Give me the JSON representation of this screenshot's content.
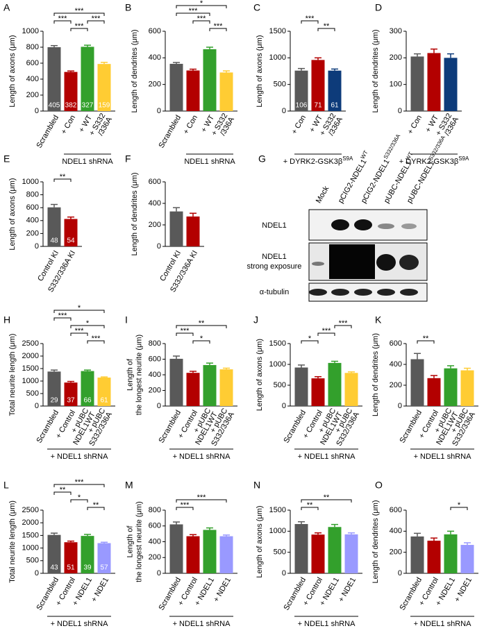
{
  "chart_data": [
    {
      "type": "bar",
      "label": "A",
      "ylabel": [
        "Length of axons (μm)"
      ],
      "categories": [
        [
          "Scrambled"
        ],
        [
          "+ Con"
        ],
        [
          "+ WT"
        ],
        [
          "+ S332",
          "/336A"
        ]
      ],
      "values": [
        800,
        490,
        805,
        590
      ],
      "errors": [
        20,
        12,
        20,
        20
      ],
      "n": [
        405,
        382,
        327,
        159
      ],
      "colors": [
        "#595959",
        "#b30000",
        "#33a02c",
        "#ffcc33"
      ],
      "ylim": [
        0,
        1000
      ],
      "yticks": [
        0,
        200,
        400,
        600,
        800,
        1000
      ],
      "group": {
        "text": "NDEL1 shRNA",
        "from": 1,
        "to": 3
      },
      "significance": [
        {
          "from": 1,
          "to": 2,
          "label": "***"
        },
        {
          "from": 2,
          "to": 3,
          "label": "***"
        },
        {
          "from": 0,
          "to": 1,
          "label": "***"
        },
        {
          "from": 0,
          "to": 3,
          "label": "***"
        }
      ]
    },
    {
      "type": "bar",
      "label": "B",
      "ylabel": [
        "Length of dendrites (μm)"
      ],
      "categories": [
        [
          "Scrambled"
        ],
        [
          "+ Con"
        ],
        [
          "+ WT"
        ],
        [
          "+ S332",
          "/336A"
        ]
      ],
      "values": [
        355,
        305,
        465,
        290
      ],
      "errors": [
        10,
        10,
        15,
        12
      ],
      "colors": [
        "#595959",
        "#b30000",
        "#33a02c",
        "#ffcc33"
      ],
      "ylim": [
        0,
        600
      ],
      "yticks": [
        0,
        200,
        400,
        600
      ],
      "group": {
        "text": "NDEL1 shRNA",
        "from": 1,
        "to": 3
      },
      "significance": [
        {
          "from": 2,
          "to": 3,
          "label": "***"
        },
        {
          "from": 1,
          "to": 2,
          "label": "***"
        },
        {
          "from": 0,
          "to": 2,
          "label": "***"
        },
        {
          "from": 0,
          "to": 3,
          "label": "*"
        }
      ]
    },
    {
      "type": "bar",
      "label": "C",
      "ylabel": [
        "Length of axons (μm)"
      ],
      "categories": [
        [
          "+ Con"
        ],
        [
          "+ WT"
        ],
        [
          "+ S332",
          "/336A"
        ]
      ],
      "values": [
        760,
        960,
        760
      ],
      "errors": [
        40,
        40,
        30
      ],
      "n": [
        106,
        71,
        61
      ],
      "colors": [
        "#595959",
        "#b30000",
        "#0d3b7a"
      ],
      "ylim": [
        0,
        1500
      ],
      "yticks": [
        0,
        500,
        1000,
        1500
      ],
      "group": {
        "text": "+ DYRK2-GSK3β",
        "sup": "S9A",
        "from": 0,
        "to": 2
      },
      "significance": [
        {
          "from": 1,
          "to": 2,
          "label": "**"
        },
        {
          "from": 0,
          "to": 1,
          "label": "***"
        }
      ]
    },
    {
      "type": "bar",
      "label": "D",
      "ylabel": [
        "Length of dendrites (μm)"
      ],
      "categories": [
        [
          "+ Con"
        ],
        [
          "+ WT"
        ],
        [
          "+ S332",
          "/336A"
        ]
      ],
      "values": [
        205,
        218,
        200
      ],
      "errors": [
        10,
        15,
        15
      ],
      "colors": [
        "#595959",
        "#b30000",
        "#0d3b7a"
      ],
      "ylim": [
        0,
        300
      ],
      "yticks": [
        0,
        100,
        200,
        300
      ],
      "group": {
        "text": "+ DYRK2-GSK3β",
        "sup": "S9A",
        "from": 0,
        "to": 2
      },
      "significance": []
    },
    {
      "type": "bar",
      "label": "E",
      "ylabel": [
        "Length of axons (μm)"
      ],
      "categories": [
        [
          "Control KI"
        ],
        [
          "S332/336A KI"
        ]
      ],
      "values": [
        605,
        425
      ],
      "errors": [
        45,
        30
      ],
      "n": [
        48,
        54
      ],
      "colors": [
        "#595959",
        "#b30000"
      ],
      "ylim": [
        0,
        1000
      ],
      "yticks": [
        0,
        200,
        400,
        600,
        800,
        1000
      ],
      "significance": [
        {
          "from": 0,
          "to": 1,
          "label": "**"
        }
      ]
    },
    {
      "type": "bar",
      "label": "F",
      "ylabel": [
        "Length of dendrites (μm)"
      ],
      "categories": [
        [
          "Control KI"
        ],
        [
          "S332/336A KI"
        ]
      ],
      "values": [
        325,
        278
      ],
      "errors": [
        35,
        30
      ],
      "colors": [
        "#595959",
        "#b30000"
      ],
      "ylim": [
        0,
        600
      ],
      "yticks": [
        0,
        200,
        400,
        600
      ],
      "significance": []
    },
    {
      "type": "bar",
      "label": "H",
      "ylabel": [
        "Total neurite length (μm)"
      ],
      "categories": [
        [
          "Scrambled"
        ],
        [
          "+ Control"
        ],
        [
          "+ pUBC",
          "NDEL1WT"
        ],
        [
          "+ pUBC",
          "S332/336A"
        ]
      ],
      "values": [
        1380,
        940,
        1400,
        1140
      ],
      "errors": [
        60,
        45,
        40,
        25
      ],
      "n": [
        29,
        37,
        66,
        61
      ],
      "colors": [
        "#595959",
        "#b30000",
        "#33a02c",
        "#ffcc33"
      ],
      "ylim": [
        0,
        2500
      ],
      "yticks": [
        0,
        500,
        1000,
        1500,
        2000,
        2500
      ],
      "group": {
        "text": "+ NDEL1 shRNA",
        "from": 0,
        "to": 3
      },
      "significance": [
        {
          "from": 2,
          "to": 3,
          "label": "***"
        },
        {
          "from": 1,
          "to": 2,
          "label": "***"
        },
        {
          "from": 1,
          "to": 3,
          "label": "*"
        },
        {
          "from": 0,
          "to": 1,
          "label": "***"
        },
        {
          "from": 0,
          "to": 3,
          "label": "*"
        }
      ]
    },
    {
      "type": "bar",
      "label": "I",
      "ylabel": [
        "Length of",
        "the longest neurite (μm)"
      ],
      "categories": [
        [
          "Scrambled"
        ],
        [
          "+ Control"
        ],
        [
          "+ pUBC",
          "NDEL1WT"
        ],
        [
          "+ pUBC",
          "S332/336A"
        ]
      ],
      "values": [
        605,
        425,
        525,
        470
      ],
      "errors": [
        35,
        20,
        25,
        15
      ],
      "colors": [
        "#595959",
        "#b30000",
        "#33a02c",
        "#ffcc33"
      ],
      "ylim": [
        0,
        800
      ],
      "yticks": [
        0,
        200,
        400,
        600,
        800
      ],
      "group": {
        "text": "+ NDEL1 shRNA",
        "from": 0,
        "to": 3
      },
      "significance": [
        {
          "from": 1,
          "to": 2,
          "label": "*"
        },
        {
          "from": 0,
          "to": 1,
          "label": "***"
        },
        {
          "from": 0,
          "to": 3,
          "label": "**"
        }
      ]
    },
    {
      "type": "bar",
      "label": "J",
      "ylabel": [
        "Length of axons (μm)"
      ],
      "categories": [
        [
          "Scrambled"
        ],
        [
          "+ Control"
        ],
        [
          "+ pUBC",
          "NDEL1WT"
        ],
        [
          "+ pUBC",
          "S332/336A"
        ]
      ],
      "values": [
        925,
        665,
        1035,
        795
      ],
      "errors": [
        60,
        40,
        40,
        25
      ],
      "colors": [
        "#595959",
        "#b30000",
        "#33a02c",
        "#ffcc33"
      ],
      "ylim": [
        0,
        1500
      ],
      "yticks": [
        0,
        500,
        1000,
        1500
      ],
      "group": {
        "text": "+ NDEL1 shRNA",
        "from": 0,
        "to": 3
      },
      "significance": [
        {
          "from": 0,
          "to": 1,
          "label": "*"
        },
        {
          "from": 1,
          "to": 2,
          "label": "***"
        },
        {
          "from": 2,
          "to": 3,
          "label": "***"
        }
      ]
    },
    {
      "type": "bar",
      "label": "K",
      "ylabel": [
        "Length of dendrites (μm)"
      ],
      "categories": [
        [
          "Scrambled"
        ],
        [
          "+ Control"
        ],
        [
          "+ pUBC",
          "NDEL1WT"
        ],
        [
          "+ pUBC",
          "S332/336A"
        ]
      ],
      "values": [
        450,
        268,
        362,
        343
      ],
      "errors": [
        55,
        25,
        25,
        20
      ],
      "colors": [
        "#595959",
        "#b30000",
        "#33a02c",
        "#ffcc33"
      ],
      "ylim": [
        0,
        600
      ],
      "yticks": [
        0,
        200,
        400,
        600
      ],
      "group": {
        "text": "+ NDEL1 shRNA",
        "from": 0,
        "to": 3
      },
      "significance": [
        {
          "from": 0,
          "to": 1,
          "label": "**"
        }
      ]
    },
    {
      "type": "bar",
      "label": "L",
      "ylabel": [
        "Total neurite length (μm)"
      ],
      "categories": [
        [
          "Scrambled"
        ],
        [
          "+ Control"
        ],
        [
          "+ NDEL1"
        ],
        [
          "+ NDE1"
        ]
      ],
      "values": [
        1520,
        1230,
        1480,
        1195
      ],
      "errors": [
        70,
        45,
        60,
        35
      ],
      "n": [
        43,
        51,
        39,
        57
      ],
      "colors": [
        "#595959",
        "#b30000",
        "#33a02c",
        "#9999ff"
      ],
      "ylim": [
        0,
        2500
      ],
      "yticks": [
        0,
        500,
        1000,
        1500,
        2000,
        2500
      ],
      "group": {
        "text": "+ NDEL1 shRNA",
        "from": 0,
        "to": 3
      },
      "significance": [
        {
          "from": 2,
          "to": 3,
          "label": "**"
        },
        {
          "from": 1,
          "to": 2,
          "label": "*"
        },
        {
          "from": 0,
          "to": 1,
          "label": "**"
        },
        {
          "from": 0,
          "to": 3,
          "label": "***"
        }
      ]
    },
    {
      "type": "bar",
      "label": "M",
      "ylabel": [
        "Length of",
        "the longest neurite (μm)"
      ],
      "categories": [
        [
          "Scrambled"
        ],
        [
          "+ Control"
        ],
        [
          "+ NDEL1"
        ],
        [
          "+ NDE1"
        ]
      ],
      "values": [
        620,
        470,
        550,
        470
      ],
      "errors": [
        30,
        20,
        25,
        15
      ],
      "colors": [
        "#595959",
        "#b30000",
        "#33a02c",
        "#9999ff"
      ],
      "ylim": [
        0,
        800
      ],
      "yticks": [
        0,
        200,
        400,
        600,
        800
      ],
      "group": {
        "text": "+ NDEL1 shRNA",
        "from": 0,
        "to": 3
      },
      "significance": [
        {
          "from": 0,
          "to": 1,
          "label": "***"
        },
        {
          "from": 0,
          "to": 3,
          "label": "***"
        }
      ]
    },
    {
      "type": "bar",
      "label": "N",
      "ylabel": [
        "Length of axons (μm)"
      ],
      "categories": [
        [
          "Scrambled"
        ],
        [
          "+ Control"
        ],
        [
          "+ NDEL1"
        ],
        [
          "+ NDE1"
        ]
      ],
      "values": [
        1170,
        920,
        1100,
        925
      ],
      "errors": [
        55,
        40,
        60,
        35
      ],
      "colors": [
        "#595959",
        "#b30000",
        "#33a02c",
        "#9999ff"
      ],
      "ylim": [
        0,
        1500
      ],
      "yticks": [
        0,
        500,
        1000,
        1500
      ],
      "group": {
        "text": "+ NDEL1 shRNA",
        "from": 0,
        "to": 3
      },
      "significance": [
        {
          "from": 0,
          "to": 1,
          "label": "**"
        },
        {
          "from": 0,
          "to": 3,
          "label": "**"
        }
      ]
    },
    {
      "type": "bar",
      "label": "O",
      "ylabel": [
        "Length of dendrites (μm)"
      ],
      "categories": [
        [
          "Scrambled"
        ],
        [
          "+ Control"
        ],
        [
          "+ NDEL1"
        ],
        [
          "+ NDE1"
        ]
      ],
      "values": [
        350,
        310,
        370,
        270
      ],
      "errors": [
        30,
        25,
        30,
        20
      ],
      "colors": [
        "#595959",
        "#b30000",
        "#33a02c",
        "#9999ff"
      ],
      "ylim": [
        0,
        600
      ],
      "yticks": [
        0,
        200,
        400,
        600
      ],
      "group": {
        "text": "+ NDEL1 shRNA",
        "from": 0,
        "to": 3
      },
      "significance": [
        {
          "from": 2,
          "to": 3,
          "label": "*"
        }
      ]
    }
  ],
  "blot": {
    "label": "G",
    "lanes": [
      {
        "text": "Mock"
      },
      {
        "text": "pCIG2-NDEL1",
        "sup": "WT"
      },
      {
        "text": "pCIG2-NDEL1",
        "sup": "S332/336A"
      },
      {
        "text": "pUBC-NDEL1",
        "sup": "WT"
      },
      {
        "text": "pUBC-NDEL1",
        "sup": "S332/336A"
      }
    ],
    "rows": [
      [
        "NDEL1"
      ],
      [
        "NDEL1",
        "strong exposure"
      ],
      [
        "α-tubulin"
      ]
    ]
  }
}
